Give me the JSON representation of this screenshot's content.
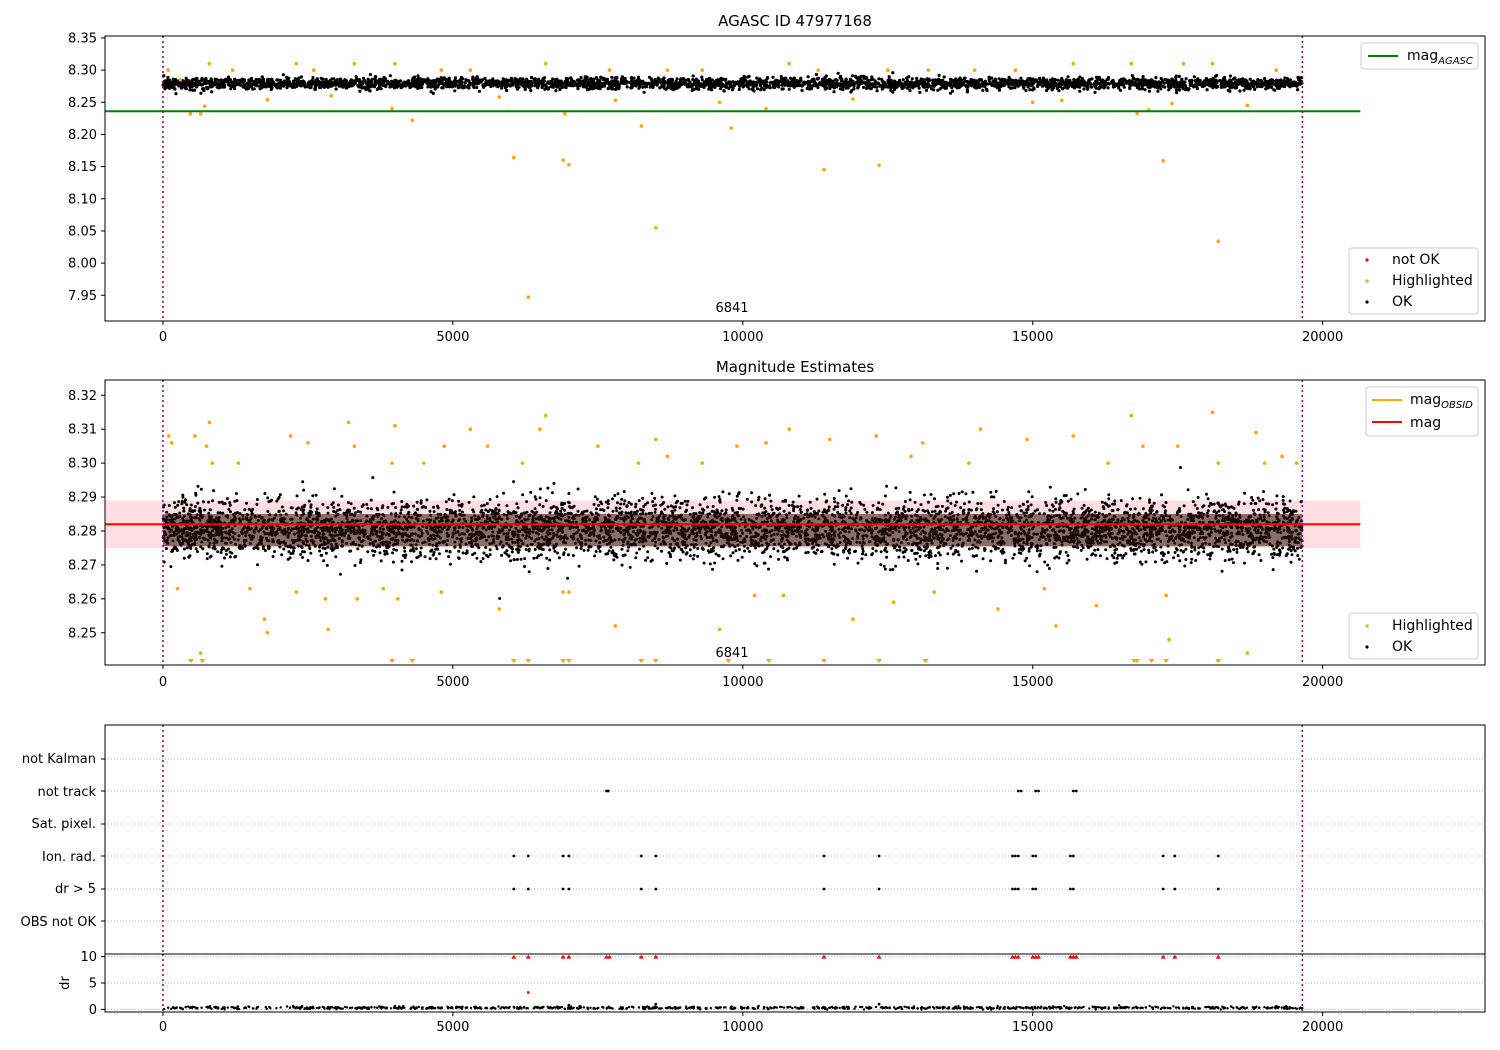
{
  "chart_data": [
    {
      "type": "scatter",
      "title": "AGASC ID 47977168",
      "xlim": [
        -1000,
        22800
      ],
      "ylim": [
        7.91,
        8.353
      ],
      "xticks": [
        0,
        5000,
        10000,
        15000,
        20000
      ],
      "yticks": [
        7.95,
        8.0,
        8.05,
        8.1,
        8.15,
        8.2,
        8.25,
        8.3,
        8.35
      ],
      "ytick_labels": [
        "7.95",
        "8.00",
        "8.05",
        "8.10",
        "8.15",
        "8.20",
        "8.25",
        "8.30",
        "8.35"
      ],
      "vlines": [
        0,
        19650
      ],
      "annotation": {
        "text": "6841",
        "x": 9750
      },
      "reference_lines": [
        {
          "name": "mag",
          "sub": "AGASC",
          "y": 8.236,
          "x": [
            -1000,
            20650
          ],
          "color": "#008000"
        }
      ],
      "ok_band": {
        "center": 8.279,
        "spread": 0.009,
        "x": [
          0,
          19650
        ],
        "count": 3500
      },
      "highlighted_points": [
        [
          90,
          8.3
        ],
        [
          300,
          8.285
        ],
        [
          470,
          8.232
        ],
        [
          650,
          8.232
        ],
        [
          720,
          8.244
        ],
        [
          800,
          8.31
        ],
        [
          1200,
          8.3
        ],
        [
          1800,
          8.254
        ],
        [
          2300,
          8.31
        ],
        [
          2600,
          8.3
        ],
        [
          2900,
          8.26
        ],
        [
          3300,
          8.31
        ],
        [
          3950,
          8.24
        ],
        [
          4000,
          8.31
        ],
        [
          4300,
          8.222
        ],
        [
          4800,
          8.3
        ],
        [
          5300,
          8.3
        ],
        [
          5800,
          8.258
        ],
        [
          6050,
          8.164
        ],
        [
          6300,
          7.947
        ],
        [
          6600,
          8.31
        ],
        [
          6900,
          8.16
        ],
        [
          6930,
          8.232
        ],
        [
          7000,
          8.153
        ],
        [
          7700,
          8.3
        ],
        [
          7800,
          8.253
        ],
        [
          8250,
          8.213
        ],
        [
          8500,
          8.055
        ],
        [
          8700,
          8.3
        ],
        [
          9300,
          8.3
        ],
        [
          9600,
          8.25
        ],
        [
          9800,
          8.21
        ],
        [
          10400,
          8.24
        ],
        [
          10800,
          8.31
        ],
        [
          11300,
          8.3
        ],
        [
          11400,
          8.145
        ],
        [
          11900,
          8.255
        ],
        [
          12350,
          8.152
        ],
        [
          12500,
          8.3
        ],
        [
          13200,
          8.3
        ],
        [
          14000,
          8.3
        ],
        [
          14700,
          8.3
        ],
        [
          15000,
          8.25
        ],
        [
          15500,
          8.253
        ],
        [
          15700,
          8.31
        ],
        [
          16700,
          8.31
        ],
        [
          16800,
          8.233
        ],
        [
          17000,
          8.238
        ],
        [
          17250,
          8.159
        ],
        [
          17400,
          8.248
        ],
        [
          17600,
          8.31
        ],
        [
          18100,
          8.31
        ],
        [
          18200,
          8.034
        ],
        [
          18700,
          8.245
        ],
        [
          19200,
          8.3
        ]
      ],
      "legend": [
        {
          "label": "mag",
          "sub": "AGASC",
          "kind": "line",
          "color": "#008000"
        }
      ],
      "legend2": [
        {
          "label": "not OK",
          "kind": "dot",
          "color": "#ff0000"
        },
        {
          "label": "Highlighted",
          "kind": "dot",
          "color": "#ffa500"
        },
        {
          "label": "OK",
          "kind": "dot",
          "color": "#000000"
        }
      ]
    },
    {
      "type": "scatter",
      "title": "Magnitude Estimates",
      "xlim": [
        -1000,
        22800
      ],
      "ylim": [
        8.2405,
        8.3245
      ],
      "xticks": [
        0,
        5000,
        10000,
        15000,
        20000
      ],
      "yticks": [
        8.25,
        8.26,
        8.27,
        8.28,
        8.29,
        8.3,
        8.31,
        8.32
      ],
      "ytick_labels": [
        "8.25",
        "8.26",
        "8.27",
        "8.28",
        "8.29",
        "8.30",
        "8.31",
        "8.32"
      ],
      "vlines": [
        0,
        19650
      ],
      "annotation": {
        "text": "6841",
        "x": 9750
      },
      "reference_lines": [
        {
          "name": "mag",
          "y": 8.282,
          "x": [
            -1000,
            20650
          ],
          "color": "#ff0000"
        }
      ],
      "band": {
        "y": [
          8.275,
          8.289
        ],
        "x": [
          -1000,
          20650
        ],
        "color": "#ffb6c1"
      },
      "ok_band": {
        "center": 8.2805,
        "spread": 0.0085,
        "x": [
          0,
          19650
        ],
        "count": 5500
      },
      "highlighted_points": [
        [
          100,
          8.308
        ],
        [
          150,
          8.306
        ],
        [
          250,
          8.263
        ],
        [
          550,
          8.308
        ],
        [
          750,
          8.305
        ],
        [
          800,
          8.312
        ],
        [
          850,
          8.3
        ],
        [
          1300,
          8.3
        ],
        [
          1500,
          8.263
        ],
        [
          1750,
          8.254
        ],
        [
          1800,
          8.25
        ],
        [
          2200,
          8.308
        ],
        [
          2300,
          8.262
        ],
        [
          2500,
          8.306
        ],
        [
          2800,
          8.26
        ],
        [
          2850,
          8.251
        ],
        [
          3200,
          8.312
        ],
        [
          3300,
          8.305
        ],
        [
          3350,
          8.26
        ],
        [
          3800,
          8.263
        ],
        [
          3950,
          8.3
        ],
        [
          4000,
          8.311
        ],
        [
          4050,
          8.26
        ],
        [
          4500,
          8.3
        ],
        [
          4800,
          8.262
        ],
        [
          4850,
          8.305
        ],
        [
          5300,
          8.31
        ],
        [
          5600,
          8.305
        ],
        [
          5800,
          8.257
        ],
        [
          6200,
          8.3
        ],
        [
          6500,
          8.31
        ],
        [
          6600,
          8.314
        ],
        [
          6900,
          8.262
        ],
        [
          7000,
          8.262
        ],
        [
          7500,
          8.305
        ],
        [
          7800,
          8.252
        ],
        [
          8200,
          8.3
        ],
        [
          8500,
          8.307
        ],
        [
          8700,
          8.302
        ],
        [
          9300,
          8.3
        ],
        [
          9600,
          8.251
        ],
        [
          9900,
          8.305
        ],
        [
          10200,
          8.261
        ],
        [
          10400,
          8.306
        ],
        [
          10700,
          8.261
        ],
        [
          10800,
          8.31
        ],
        [
          11500,
          8.307
        ],
        [
          11900,
          8.254
        ],
        [
          12300,
          8.308
        ],
        [
          12600,
          8.259
        ],
        [
          12900,
          8.302
        ],
        [
          13100,
          8.306
        ],
        [
          13300,
          8.262
        ],
        [
          13900,
          8.3
        ],
        [
          14100,
          8.31
        ],
        [
          14400,
          8.257
        ],
        [
          14900,
          8.307
        ],
        [
          15200,
          8.263
        ],
        [
          15400,
          8.252
        ],
        [
          15700,
          8.308
        ],
        [
          16100,
          8.258
        ],
        [
          16300,
          8.3
        ],
        [
          16700,
          8.314
        ],
        [
          16900,
          8.305
        ],
        [
          17300,
          8.261
        ],
        [
          17350,
          8.248
        ],
        [
          17500,
          8.305
        ],
        [
          18100,
          8.315
        ],
        [
          18200,
          8.3
        ],
        [
          18700,
          8.244
        ],
        [
          18850,
          8.309
        ],
        [
          19000,
          8.3
        ],
        [
          19300,
          8.302
        ],
        [
          19550,
          8.3
        ],
        [
          650,
          8.244
        ]
      ],
      "clipped_low_points": [
        480,
        680,
        3950,
        4300,
        6050,
        6300,
        6900,
        7000,
        8250,
        8500,
        9750,
        10450,
        11400,
        12350,
        13150,
        16750,
        16800,
        17050,
        17300,
        18200
      ],
      "legend": [
        {
          "label": "mag",
          "sub": "OBSID",
          "kind": "line",
          "color": "#ffa500"
        },
        {
          "label": "mag",
          "kind": "line",
          "color": "#ff0000"
        }
      ],
      "legend2": [
        {
          "label": "Highlighted",
          "kind": "dot",
          "color": "#ffa500"
        },
        {
          "label": "OK",
          "kind": "dot",
          "color": "#000000"
        }
      ]
    },
    {
      "type": "scatter",
      "xlim": [
        -1000,
        22800
      ],
      "vlines": [
        0,
        19650
      ],
      "categories": [
        "not Kalman",
        "not track",
        "Sat. pixel.",
        "Ion. rad.",
        "dr > 5",
        "OBS not OK"
      ],
      "flag_points": {
        "not track": [
          7650,
          7680,
          14750,
          14800,
          15050,
          15100,
          15700,
          15750
        ],
        "Ion. rad.": [
          6050,
          6300,
          6900,
          7000,
          8250,
          8500,
          11400,
          12350,
          14650,
          14700,
          14750,
          15000,
          15050,
          15650,
          15700,
          17250,
          17450,
          18200
        ],
        "dr > 5": [
          6050,
          6300,
          6900,
          7000,
          8250,
          8500,
          11400,
          12350,
          14650,
          14700,
          14750,
          15000,
          15050,
          15650,
          15700,
          17250,
          17450,
          18200
        ]
      }
    },
    {
      "type": "scatter",
      "ylabel": "dr",
      "xlim": [
        -1000,
        22800
      ],
      "ylim": [
        -0.5,
        10.5
      ],
      "xticks": [
        0,
        5000,
        10000,
        15000,
        20000
      ],
      "yticks": [
        0,
        5,
        10
      ],
      "ytick_labels": [
        "0",
        "5",
        "10"
      ],
      "vlines": [
        0,
        19650
      ],
      "clipped_high_points": [
        6050,
        6300,
        6900,
        7000,
        7650,
        7700,
        8250,
        8500,
        11400,
        12350,
        14650,
        14700,
        14750,
        15000,
        15050,
        15100,
        15650,
        15700,
        15750,
        17250,
        17450,
        18200
      ],
      "outlier_points": [
        [
          6300,
          3.2
        ],
        [
          8500,
          1.0
        ],
        [
          12350,
          1.0
        ],
        [
          7000,
          0.8
        ],
        [
          4000,
          0.6
        ]
      ],
      "ok_band": {
        "center": 0.3,
        "spread": 0.25,
        "x": [
          0,
          19650
        ],
        "count": 900
      }
    }
  ]
}
